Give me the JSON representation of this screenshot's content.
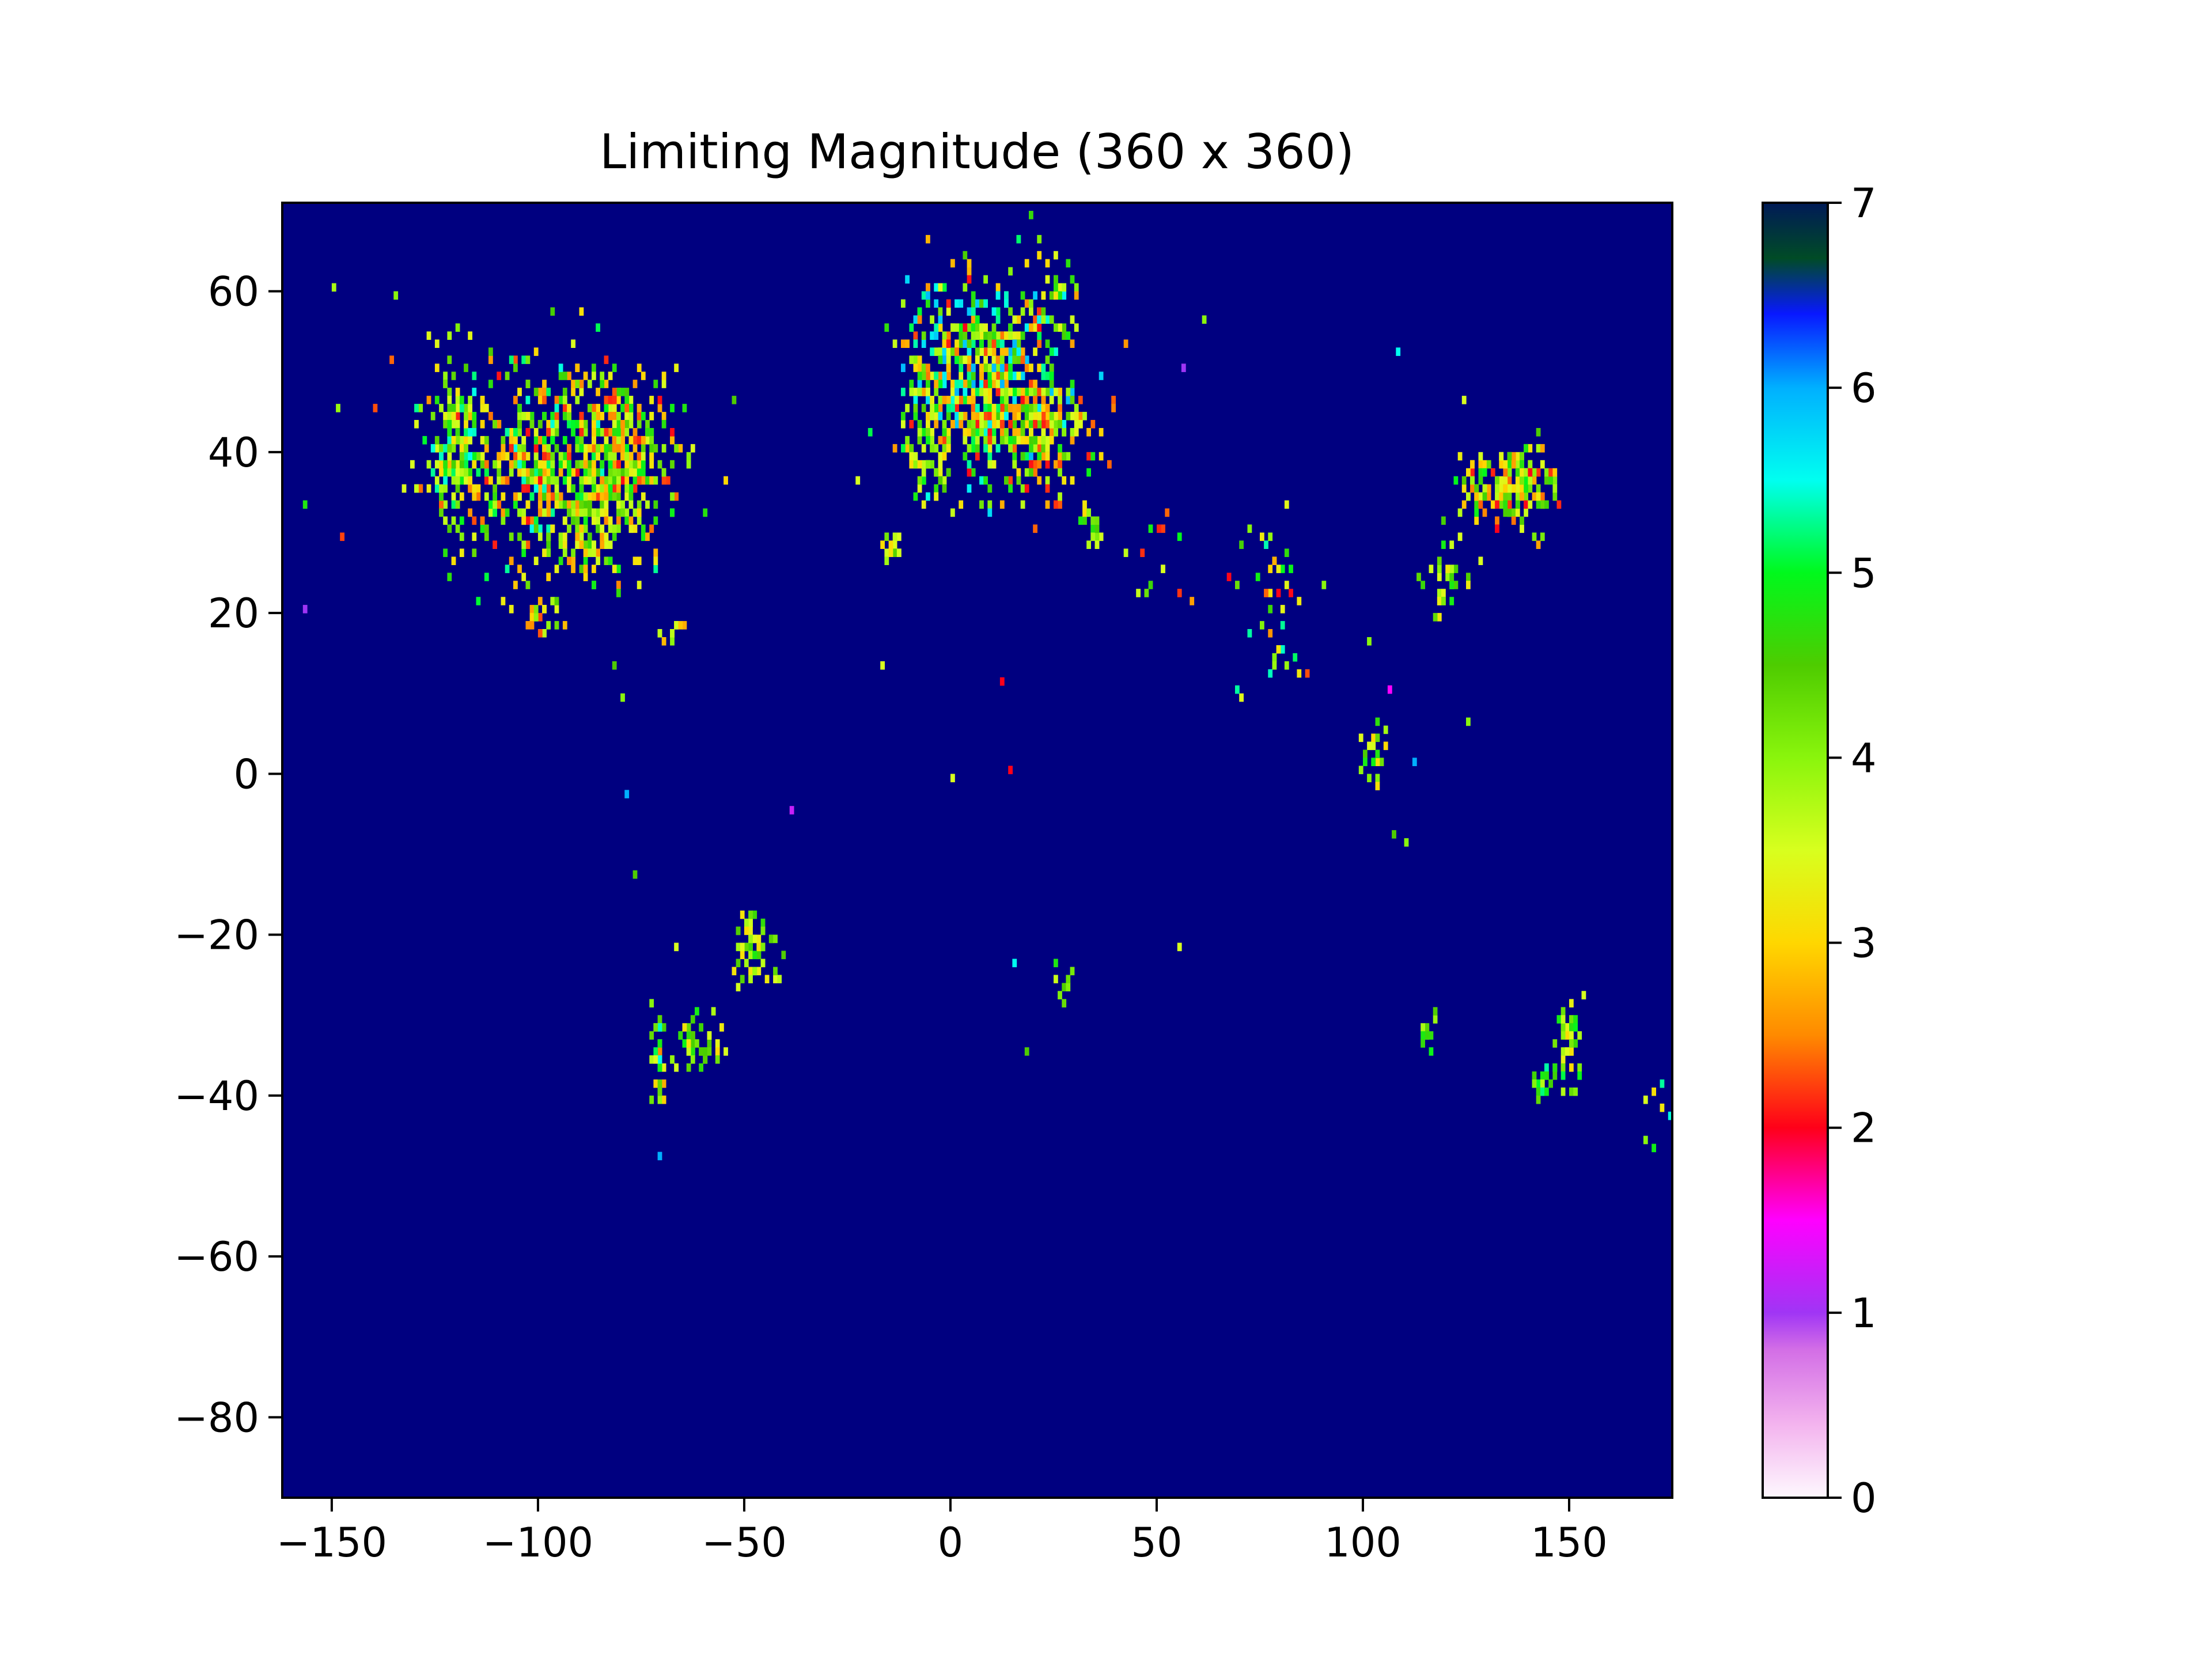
{
  "chart_data": {
    "type": "heatmap",
    "title": "Limiting Magnitude (360 x 360)",
    "xlabel": "",
    "ylabel": "",
    "xlim": [
      -162,
      175
    ],
    "ylim": [
      -90,
      71
    ],
    "x_ticks": [
      -150,
      -100,
      -50,
      0,
      50,
      100,
      150
    ],
    "x_tick_labels": [
      "−150",
      "−100",
      "−50",
      "0",
      "50",
      "100",
      "150"
    ],
    "y_ticks": [
      60,
      40,
      20,
      0,
      -20,
      -40,
      -60,
      -80
    ],
    "y_tick_labels": [
      "60",
      "40",
      "20",
      "0",
      "−20",
      "−40",
      "−60",
      "−80"
    ],
    "background_value": 7,
    "colorbar": {
      "min": 0,
      "max": 7,
      "ticks": [
        0,
        1,
        2,
        3,
        4,
        5,
        6,
        7
      ],
      "tick_labels": [
        "0",
        "1",
        "2",
        "3",
        "4",
        "5",
        "6",
        "7"
      ],
      "colormap": "gist_ncar_r",
      "stops": [
        {
          "v": 0.0,
          "color": "#fef8fe"
        },
        {
          "v": 0.4,
          "color": "#f3b3ee"
        },
        {
          "v": 0.8,
          "color": "#d36ee6"
        },
        {
          "v": 1.0,
          "color": "#a035f5"
        },
        {
          "v": 1.5,
          "color": "#ff00ff"
        },
        {
          "v": 2.0,
          "color": "#ff0019"
        },
        {
          "v": 2.5,
          "color": "#ff8a00"
        },
        {
          "v": 3.0,
          "color": "#ffd700"
        },
        {
          "v": 3.5,
          "color": "#d8ff1e"
        },
        {
          "v": 4.0,
          "color": "#8af50c"
        },
        {
          "v": 4.5,
          "color": "#4ecc00"
        },
        {
          "v": 5.0,
          "color": "#00f91c"
        },
        {
          "v": 5.5,
          "color": "#00fff0"
        },
        {
          "v": 6.0,
          "color": "#00b0ff"
        },
        {
          "v": 6.4,
          "color": "#0818ff"
        },
        {
          "v": 6.7,
          "color": "#004b26"
        },
        {
          "v": 7.0,
          "color": "#001a57"
        }
      ]
    },
    "regions": [
      {
        "lon": -100,
        "lat": 39,
        "sx": 14,
        "sy": 6,
        "n": 520,
        "vmin": 2,
        "vmax": 5.5
      },
      {
        "lon": -80,
        "lat": 40,
        "sx": 6,
        "sy": 5,
        "n": 260,
        "vmin": 2,
        "vmax": 5
      },
      {
        "lon": -120,
        "lat": 40,
        "sx": 3,
        "sy": 6,
        "n": 120,
        "vmin": 3,
        "vmax": 5.5
      },
      {
        "lon": -88,
        "lat": 30,
        "sx": 7,
        "sy": 3,
        "n": 90,
        "vmin": 2.5,
        "vmax": 5
      },
      {
        "lon": -99,
        "lat": 20,
        "sx": 3,
        "sy": 1.5,
        "n": 20,
        "vmin": 2,
        "vmax": 4.5
      },
      {
        "lon": -67,
        "lat": 18,
        "sx": 1.5,
        "sy": 0.6,
        "n": 12,
        "vmin": 2.5,
        "vmax": 4
      },
      {
        "lon": 8,
        "lat": 49,
        "sx": 9,
        "sy": 6,
        "n": 650,
        "vmin": 2,
        "vmax": 6
      },
      {
        "lon": 22,
        "lat": 42,
        "sx": 7,
        "sy": 4,
        "n": 160,
        "vmin": 2,
        "vmax": 5
      },
      {
        "lon": 24,
        "lat": 60,
        "sx": 3,
        "sy": 3,
        "n": 20,
        "vmin": 3,
        "vmax": 5
      },
      {
        "lon": -5,
        "lat": 40,
        "sx": 3,
        "sy": 3,
        "n": 60,
        "vmin": 3,
        "vmax": 5
      },
      {
        "lon": -15,
        "lat": 28,
        "sx": 1.5,
        "sy": 0.7,
        "n": 12,
        "vmin": 3,
        "vmax": 4.5
      },
      {
        "lon": 138,
        "lat": 36,
        "sx": 4,
        "sy": 2.5,
        "n": 140,
        "vmin": 2,
        "vmax": 5
      },
      {
        "lon": 127,
        "lat": 36,
        "sx": 2,
        "sy": 2,
        "n": 40,
        "vmin": 2,
        "vmax": 5
      },
      {
        "lon": 121,
        "lat": 24,
        "sx": 3,
        "sy": 3,
        "n": 30,
        "vmin": 3,
        "vmax": 5
      },
      {
        "lon": 77,
        "lat": 22,
        "sx": 4,
        "sy": 7,
        "n": 40,
        "vmin": 2,
        "vmax": 5.5
      },
      {
        "lon": 103,
        "lat": 3,
        "sx": 2,
        "sy": 3,
        "n": 18,
        "vmin": 3,
        "vmax": 5
      },
      {
        "lon": -47,
        "lat": -22,
        "sx": 3,
        "sy": 2,
        "n": 55,
        "vmin": 3,
        "vmax": 5
      },
      {
        "lon": -61,
        "lat": -34,
        "sx": 3,
        "sy": 1.5,
        "n": 45,
        "vmin": 3,
        "vmax": 5
      },
      {
        "lon": -71,
        "lat": -35,
        "sx": 1,
        "sy": 4,
        "n": 30,
        "vmin": 2.5,
        "vmax": 5.5
      },
      {
        "lon": 150,
        "lat": -34,
        "sx": 2,
        "sy": 3,
        "n": 35,
        "vmin": 3,
        "vmax": 5
      },
      {
        "lon": 144,
        "lat": -38,
        "sx": 2,
        "sy": 1,
        "n": 20,
        "vmin": 3.5,
        "vmax": 5.5
      },
      {
        "lon": 116,
        "lat": -32,
        "sx": 1,
        "sy": 1,
        "n": 10,
        "vmin": 3.5,
        "vmax": 5
      },
      {
        "lon": 28,
        "lat": -26,
        "sx": 1.5,
        "sy": 1,
        "n": 8,
        "vmin": 3.5,
        "vmax": 5
      },
      {
        "lon": 35,
        "lat": 31,
        "sx": 2,
        "sy": 2,
        "n": 18,
        "vmin": 3,
        "vmax": 5
      },
      {
        "lon": 50,
        "lat": 27,
        "sx": 4,
        "sy": 3,
        "n": 14,
        "vmin": 2,
        "vmax": 5
      },
      {
        "lon": 173,
        "lat": -42,
        "sx": 3,
        "sy": 2,
        "n": 10,
        "vmin": 3,
        "vmax": 5.5
      }
    ],
    "points": [
      {
        "lon": -157,
        "lat": 21,
        "v": 1.0
      },
      {
        "lon": -150,
        "lat": 61,
        "v": 3.8
      },
      {
        "lon": -135,
        "lat": 60,
        "v": 4.0
      },
      {
        "lon": -112,
        "lat": 53,
        "v": 4.5
      },
      {
        "lon": -80,
        "lat": 10,
        "v": 4.0
      },
      {
        "lon": -82,
        "lat": 14,
        "v": 4.5
      },
      {
        "lon": -79,
        "lat": -2,
        "v": 6.0
      },
      {
        "lon": -77,
        "lat": -12,
        "v": 4.5
      },
      {
        "lon": -67,
        "lat": -21,
        "v": 3.5
      },
      {
        "lon": -71,
        "lat": -47,
        "v": 6.0
      },
      {
        "lon": -39,
        "lat": -4,
        "v": 1.2
      },
      {
        "lon": -53,
        "lat": 47,
        "v": 4.5
      },
      {
        "lon": -23,
        "lat": 37,
        "v": 3.5
      },
      {
        "lon": -17,
        "lat": 14,
        "v": 3.5
      },
      {
        "lon": 0,
        "lat": 0,
        "v": 3.5
      },
      {
        "lon": 12,
        "lat": 12,
        "v": 2.0
      },
      {
        "lon": 14,
        "lat": 1,
        "v": 2.0
      },
      {
        "lon": 15,
        "lat": -23,
        "v": 5.5
      },
      {
        "lon": 18,
        "lat": -34,
        "v": 4.5
      },
      {
        "lon": 55,
        "lat": -21,
        "v": 3.5
      },
      {
        "lon": 56,
        "lat": 51,
        "v": 1.0
      },
      {
        "lon": 61,
        "lat": 57,
        "v": 4.0
      },
      {
        "lon": 90,
        "lat": 24,
        "v": 4.0
      },
      {
        "lon": 101,
        "lat": 17,
        "v": 4.0
      },
      {
        "lon": 107,
        "lat": -7,
        "v": 4.5
      },
      {
        "lon": 110,
        "lat": -8,
        "v": 4.0
      },
      {
        "lon": 106,
        "lat": 11,
        "v": 1.5
      },
      {
        "lon": 108,
        "lat": 53,
        "v": 5.5
      },
      {
        "lon": 124,
        "lat": 47,
        "v": 3.5
      },
      {
        "lon": 125,
        "lat": 7,
        "v": 4.0
      },
      {
        "lon": 112,
        "lat": 2,
        "v": 6.0
      },
      {
        "lon": 142,
        "lat": 43,
        "v": 4.5
      },
      {
        "lon": 140,
        "lat": 38,
        "v": 2.0
      },
      {
        "lon": 153,
        "lat": -27,
        "v": 3.5
      },
      {
        "lon": 175,
        "lat": -36,
        "v": 5.0
      },
      {
        "lon": 168,
        "lat": -45,
        "v": 4.0
      }
    ]
  }
}
